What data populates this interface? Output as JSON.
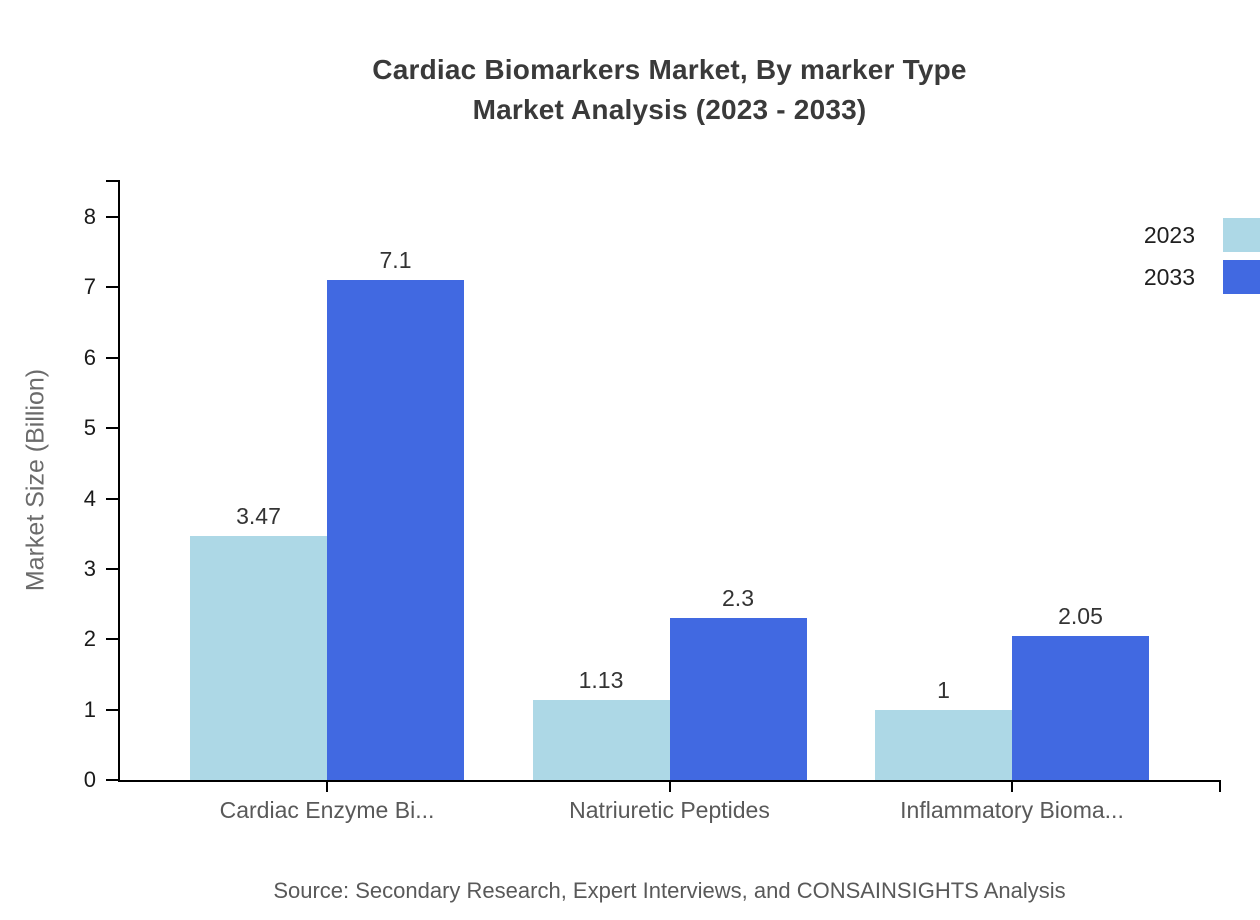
{
  "page": {
    "background": "#ffffff"
  },
  "chart_data": {
    "type": "bar",
    "title_lines": [
      "Cardiac Biomarkers Market, By marker Type",
      "Market Analysis (2023 - 2033)"
    ],
    "ylabel": "Market Size (Billion)",
    "xlabel": "",
    "categories": [
      "Cardiac Enzyme Bi...",
      "Natriuretic Peptides",
      "Inflammatory Bioma..."
    ],
    "series": [
      {
        "name": "2023",
        "color": "#ADD8E6",
        "values": [
          3.47,
          1.13,
          1
        ]
      },
      {
        "name": "2033",
        "color": "#4169E1",
        "values": [
          7.1,
          2.3,
          2.05
        ]
      }
    ],
    "ylim": [
      0,
      8
    ],
    "ytick_step": 1,
    "grid": false,
    "legend_position": "top-right",
    "axis_color": "#000000",
    "source": "Source: Secondary Research, Expert Interviews, and CONSAINSIGHTS Analysis"
  }
}
